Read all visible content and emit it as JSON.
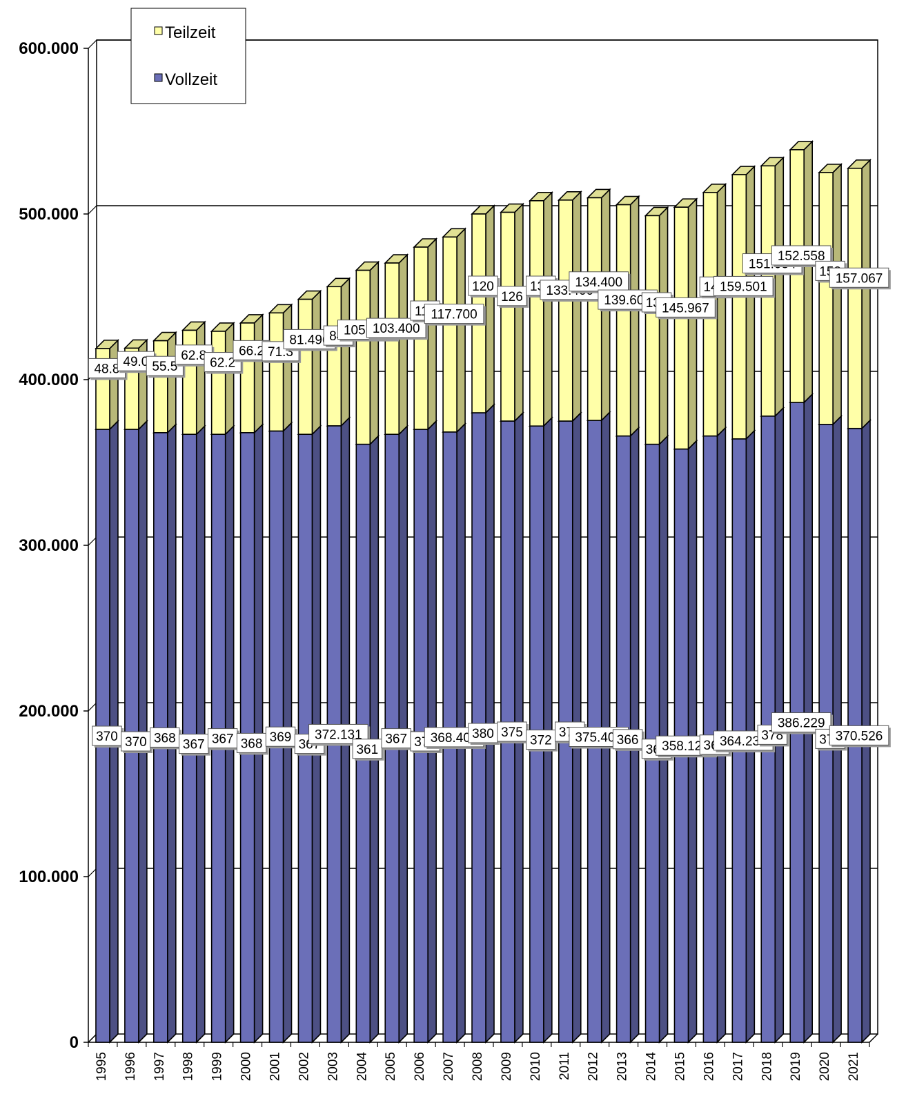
{
  "chart_data": {
    "type": "bar",
    "stacked": true,
    "categories": [
      "1995",
      "1996",
      "1997",
      "1998",
      "1999",
      "2000",
      "2001",
      "2002",
      "2003",
      "2004",
      "2005",
      "2006",
      "2007",
      "2008",
      "2009",
      "2010",
      "2011",
      "2012",
      "2013",
      "2014",
      "2015",
      "2016",
      "2017",
      "2018",
      "2019",
      "2020",
      "2021"
    ],
    "series": [
      {
        "name": "Vollzeit",
        "color": "#6b6fb8",
        "values": [
          370000,
          370000,
          368000,
          367000,
          367000,
          368000,
          369000,
          367000,
          372131,
          361000,
          367000,
          370000,
          368400,
          380000,
          375000,
          372000,
          375000,
          375400,
          366000,
          361000,
          358126,
          366000,
          364238,
          378000,
          386229,
          373000,
          370526
        ],
        "labels": [
          "370",
          "370",
          "368",
          "367",
          "367",
          "368",
          "369",
          "367",
          "372.131",
          "361",
          "367",
          "370",
          "368.400",
          "380",
          "375",
          "372",
          "375",
          "375.400",
          "366",
          "361",
          "358.126",
          "366",
          "364.238",
          "378",
          "386.229",
          "373",
          "370.526"
        ]
      },
      {
        "name": "Teilzeit",
        "color": "#ffffa8",
        "values": [
          48800,
          49000,
          55500,
          62800,
          62200,
          66200,
          71300,
          81496,
          84000,
          105000,
          103400,
          110000,
          117700,
          120000,
          126000,
          136000,
          133400,
          134400,
          139600,
          138000,
          145967,
          147000,
          159501,
          151054,
          152558,
          152000,
          157067
        ],
        "labels": [
          "48.8",
          "49.0",
          "55.5",
          "62.8",
          "62.2",
          "66.2",
          "71.3",
          "81.496",
          "84.",
          "105.000",
          "103.400",
          "110",
          "117.700",
          "120",
          "126",
          "136",
          "133.400",
          "134.400",
          "139.600",
          "138",
          "145.967",
          "147",
          "159.501",
          "151.054",
          "152.558",
          "152",
          "157.067"
        ]
      }
    ],
    "yticks": [
      "0",
      "100.000",
      "200.000",
      "300.000",
      "400.000",
      "500.000",
      "600.000"
    ],
    "ylim": [
      0,
      600000
    ],
    "grid": true,
    "legend_position": "top-left"
  }
}
